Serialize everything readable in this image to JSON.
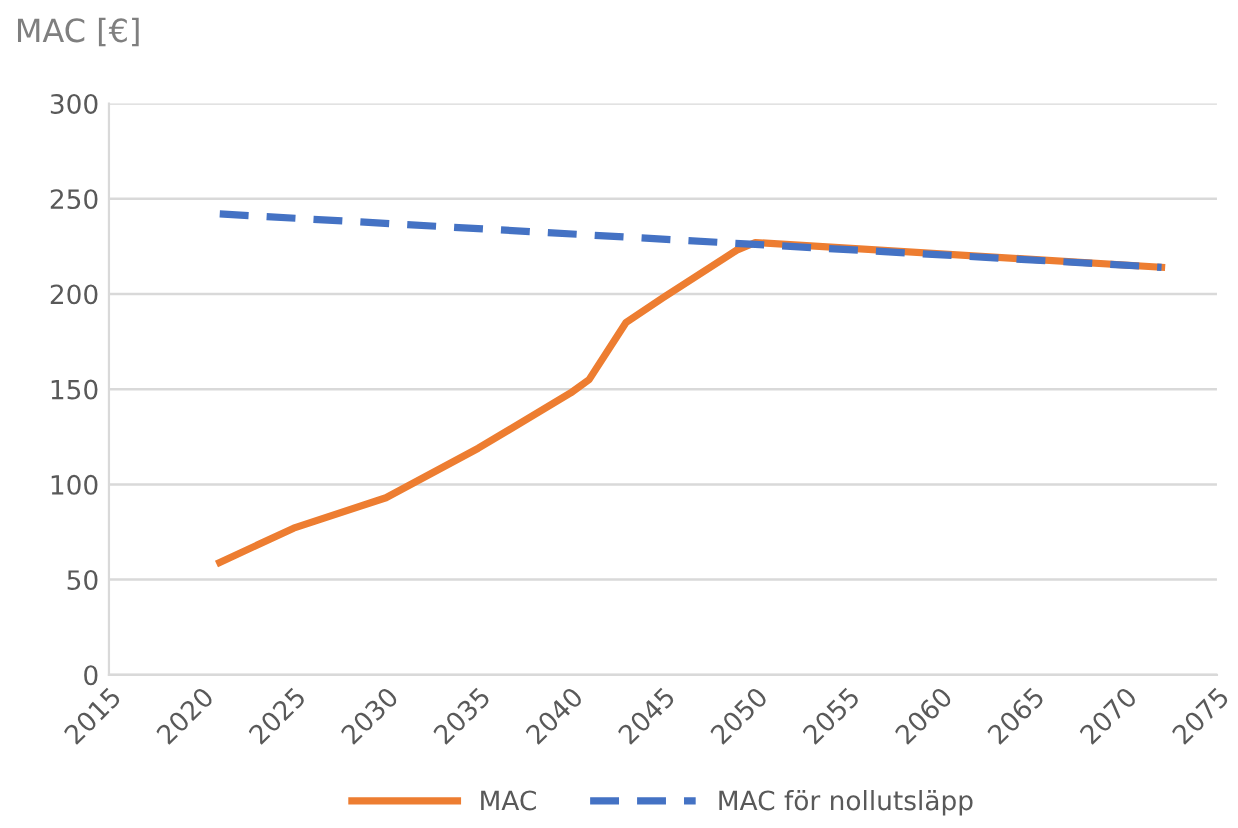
{
  "chart_data": {
    "type": "line",
    "ylabel": "MAC [€]",
    "xlim": [
      2015,
      2075
    ],
    "xticks": [
      2015,
      2020,
      2025,
      2030,
      2035,
      2040,
      2045,
      2050,
      2055,
      2060,
      2065,
      2070,
      2075
    ],
    "ylim": [
      0,
      300
    ],
    "yticks": [
      0,
      50,
      100,
      150,
      200,
      250,
      300
    ],
    "grid": "y",
    "legend": "bottom",
    "series": [
      {
        "name": "MAC",
        "color": "#ed7d31",
        "line_style": "solid",
        "x": [
          2021,
          2025,
          2030,
          2035,
          2040,
          2041,
          2043,
          2045,
          2049,
          2050,
          2072
        ],
        "values": [
          59,
          77,
          93,
          119,
          148,
          155,
          185,
          198,
          223,
          227,
          214
        ]
      },
      {
        "name": "MAC för nollutsläpp",
        "color": "#4472c4",
        "line_style": "dashed",
        "x": [
          2021,
          2050,
          2072
        ],
        "values": [
          242,
          226,
          214
        ]
      }
    ]
  }
}
